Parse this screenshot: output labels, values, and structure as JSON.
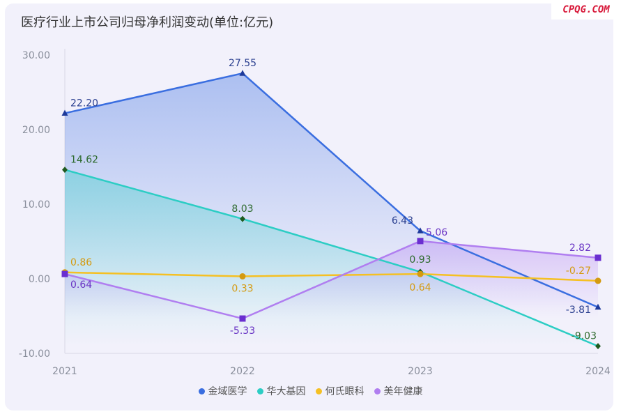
{
  "title": "医疗行业上市公司归母净利润变动(单位:亿元)",
  "brand": "CPQG.COM",
  "chart_data": {
    "type": "line",
    "title": "医疗行业上市公司归母净利润变动(单位:亿元)",
    "x": [
      "2021",
      "2022",
      "2023",
      "2024"
    ],
    "ylim": [
      -10,
      30
    ],
    "yticks": [
      "30.00",
      "20.00",
      "10.00",
      "0.00",
      "-10.00"
    ],
    "ytick_values": [
      30,
      20,
      10,
      0,
      -10
    ],
    "grid": false,
    "legend_position": "bottom",
    "series": [
      {
        "name": "金域医学",
        "values": [
          22.2,
          27.55,
          6.43,
          -3.81
        ],
        "labels": [
          "22.20",
          "27.55",
          "6.43",
          "-3.81"
        ],
        "color": "#3a6ee0",
        "label_color": "#2a3f8f",
        "marker": "triangle",
        "area": true
      },
      {
        "name": "华大基因",
        "values": [
          14.62,
          8.03,
          0.93,
          -9.03
        ],
        "labels": [
          "14.62",
          "8.03",
          "0.93",
          "-9.03"
        ],
        "color": "#2ccdc4",
        "label_color": "#2d6a2d",
        "marker": "diamond",
        "area": true
      },
      {
        "name": "何氏眼科",
        "values": [
          0.86,
          0.33,
          0.64,
          -0.27
        ],
        "labels": [
          "0.86",
          "0.33",
          "0.64",
          "-0.27"
        ],
        "color": "#f5c023",
        "label_color": "#d49a10",
        "marker": "circle",
        "area": false
      },
      {
        "name": "美年健康",
        "values": [
          0.64,
          -5.33,
          5.06,
          2.82
        ],
        "labels": [
          "0.64",
          "-5.33",
          "5.06",
          "2.82"
        ],
        "color": "#b07ef0",
        "label_color": "#6a35c5",
        "marker": "square",
        "area": true
      }
    ]
  }
}
